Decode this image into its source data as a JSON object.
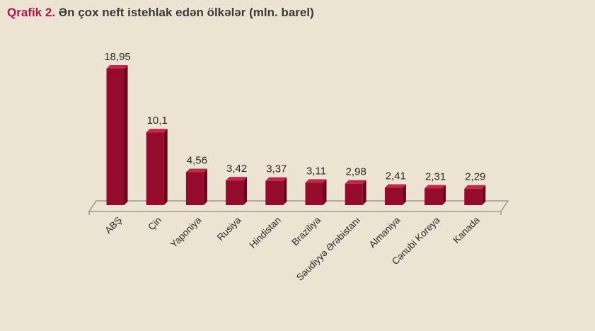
{
  "title": {
    "prefix": "Qrafik 2.",
    "text": "Ən çox neft istehlak edən ölkələr (mln. barel)"
  },
  "colors": {
    "bar_front": "#950b2d",
    "bar_top": "#c5264a",
    "bar_side": "#6b0520",
    "floor": "#8a8a8a",
    "background": "#ede3d3"
  },
  "chart_data": {
    "type": "bar",
    "title": "Ən çox neft istehlak edən ölkələr (mln. barel)",
    "categories": [
      "ABŞ",
      "Çin",
      "Yaponiya",
      "Rusiya",
      "Hindistan",
      "Braziliya",
      "Səudiyyə Ərəbistanı",
      "Almaniya",
      "Cənubi Koreya",
      "Kanada"
    ],
    "values": [
      18.95,
      10.1,
      4.56,
      3.42,
      3.37,
      3.11,
      2.98,
      2.41,
      2.31,
      2.29
    ],
    "value_labels": [
      "18,95",
      "10,1",
      "4,56",
      "3,42",
      "3,37",
      "3,11",
      "2,98",
      "2,41",
      "2,31",
      "2,29"
    ],
    "ylim": [
      0,
      20
    ],
    "grid": false,
    "legend": "none",
    "style": "3d-column"
  }
}
